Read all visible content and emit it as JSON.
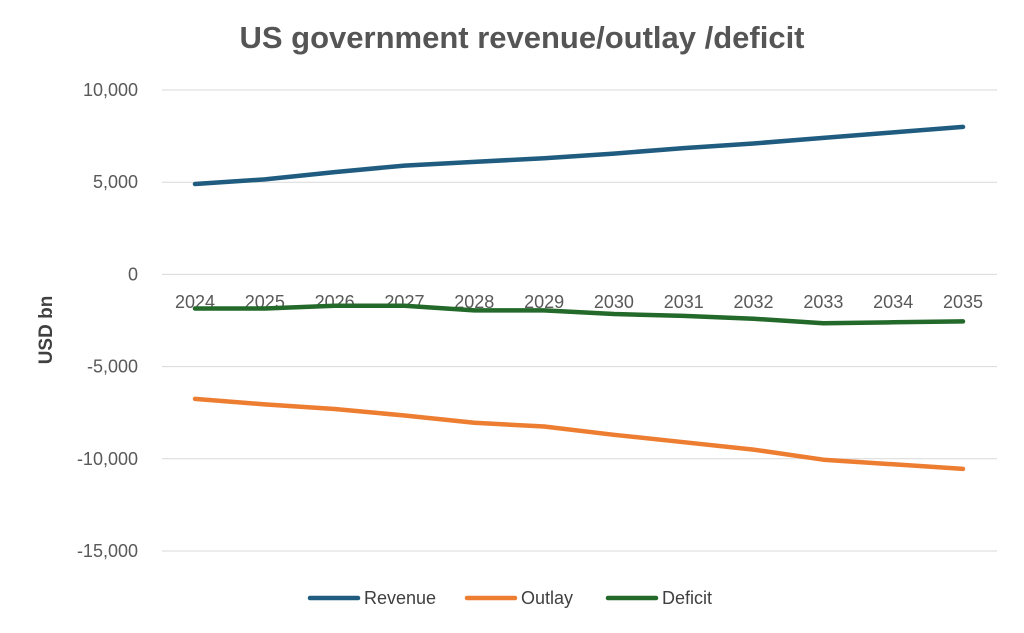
{
  "chart_data": {
    "type": "line",
    "title": "US government revenue/outlay /deficit",
    "ylabel": "USD bn",
    "xlabel": "",
    "ylim": [
      -15000,
      10000
    ],
    "yticks": [
      10000,
      5000,
      0,
      -5000,
      -10000,
      -15000
    ],
    "ytick_labels": [
      "10,000",
      "5,000",
      "0",
      "-5,000",
      "-10,000",
      "-15,000"
    ],
    "categories": [
      "2024",
      "2025",
      "2026",
      "2027",
      "2028",
      "2029",
      "2030",
      "2031",
      "2032",
      "2033",
      "2034",
      "2035"
    ],
    "grid": true,
    "legend_position": "bottom",
    "series": [
      {
        "name": "Revenue",
        "color": "#1f5c80",
        "values": [
          4900,
          5150,
          5550,
          5900,
          6100,
          6300,
          6550,
          6850,
          7100,
          7400,
          7700,
          8000
        ]
      },
      {
        "name": "Outlay",
        "color": "#ed7d31",
        "values": [
          -6750,
          -7050,
          -7300,
          -7650,
          -8050,
          -8250,
          -8700,
          -9100,
          -9500,
          -10050,
          -10300,
          -10550
        ]
      },
      {
        "name": "Deficit",
        "color": "#22692a",
        "values": [
          -1850,
          -1850,
          -1700,
          -1700,
          -1950,
          -1950,
          -2150,
          -2250,
          -2400,
          -2650,
          -2600,
          -2550
        ]
      }
    ]
  }
}
